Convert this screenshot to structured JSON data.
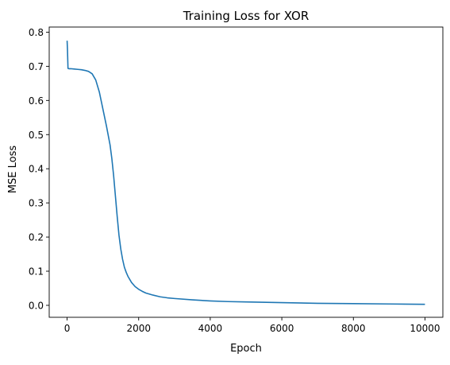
{
  "chart_data": {
    "type": "line",
    "title": "Training Loss for XOR",
    "xlabel": "Epoch",
    "ylabel": "MSE Loss",
    "xlim": [
      -500,
      10500
    ],
    "ylim": [
      -0.035,
      0.815
    ],
    "xticks": [
      0,
      2000,
      4000,
      6000,
      8000,
      10000
    ],
    "yticks": [
      0.0,
      0.1,
      0.2,
      0.3,
      0.4,
      0.5,
      0.6,
      0.7,
      0.8
    ],
    "ytick_labels": [
      "0.0",
      "0.1",
      "0.2",
      "0.3",
      "0.4",
      "0.5",
      "0.6",
      "0.7",
      "0.8"
    ],
    "grid": false,
    "legend": "none",
    "series": [
      {
        "color": "#1f77b4",
        "x": [
          0,
          10,
          25,
          50,
          100,
          200,
          300,
          400,
          500,
          600,
          700,
          800,
          900,
          1000,
          1100,
          1200,
          1250,
          1300,
          1350,
          1400,
          1450,
          1500,
          1550,
          1600,
          1650,
          1700,
          1800,
          1900,
          2000,
          2100,
          2200,
          2400,
          2600,
          2800,
          3000,
          3500,
          4000,
          4500,
          5000,
          6000,
          7000,
          8000,
          9000,
          10000
        ],
        "y": [
          0.775,
          0.75,
          0.694,
          0.693,
          0.693,
          0.692,
          0.691,
          0.69,
          0.688,
          0.685,
          0.678,
          0.66,
          0.625,
          0.575,
          0.525,
          0.47,
          0.43,
          0.38,
          0.32,
          0.26,
          0.205,
          0.165,
          0.135,
          0.112,
          0.097,
          0.085,
          0.067,
          0.055,
          0.047,
          0.041,
          0.036,
          0.03,
          0.025,
          0.022,
          0.02,
          0.016,
          0.013,
          0.011,
          0.01,
          0.008,
          0.006,
          0.005,
          0.004,
          0.003
        ]
      }
    ]
  }
}
